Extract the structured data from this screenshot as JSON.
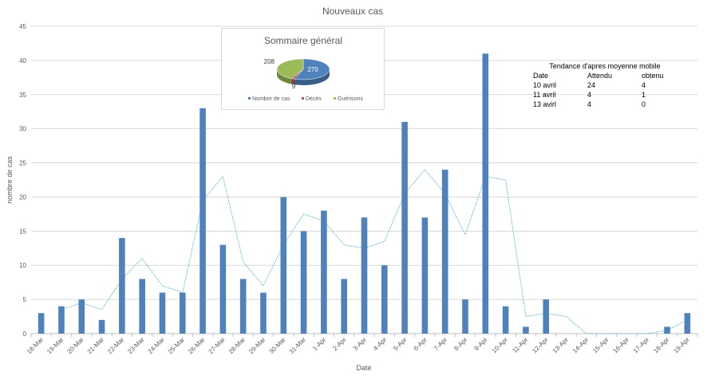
{
  "chart_data": {
    "type": "bar",
    "title": "Nouveaux cas",
    "xlabel": "Date",
    "ylabel": "nombre de cas",
    "ylim": [
      0,
      45
    ],
    "yticks": [
      0,
      5,
      10,
      15,
      20,
      25,
      30,
      35,
      40,
      45
    ],
    "grid": "horizontal",
    "categories": [
      "18-Mar",
      "19-Mar",
      "20-Mar",
      "21-Mar",
      "22-Mar",
      "23-Mar",
      "24-Mar",
      "25-Mar",
      "26-Mar",
      "27-Mar",
      "28-Mar",
      "29-Mar",
      "30-Mar",
      "31-Mar",
      "1-Apr",
      "2-Apr",
      "3-Apr",
      "4-Apr",
      "5-Apr",
      "6-Apr",
      "7-Apr",
      "8-Apr",
      "9-Apr",
      "10-Apr",
      "11-Apr",
      "12-Apr",
      "13-Apr",
      "14-Apr",
      "15-Apr",
      "16-Apr",
      "17-Apr",
      "18-Apr",
      "19-Apr"
    ],
    "series": [
      {
        "kind": "bar",
        "color": "#4f81bd",
        "values": [
          3,
          4,
          5,
          2,
          14,
          8,
          6,
          6,
          33,
          13,
          8,
          6,
          20,
          15,
          18,
          8,
          17,
          10,
          31,
          17,
          24,
          5,
          41,
          4,
          1,
          5,
          0,
          0,
          0,
          0,
          0,
          1,
          3
        ]
      },
      {
        "kind": "trendline-moving-average",
        "color": "#4bacc6",
        "values": [
          null,
          3.5,
          4.5,
          3.5,
          8,
          11,
          7,
          6,
          19.5,
          23,
          10.5,
          7,
          13,
          17.5,
          16.5,
          13,
          12.5,
          13.5,
          20.5,
          24,
          20.5,
          14.5,
          23,
          22.5,
          2.5,
          3,
          2.5,
          0,
          0,
          0,
          0,
          0.5,
          2
        ]
      }
    ]
  },
  "summary": {
    "title": "Sommaire général",
    "chart_data": {
      "type": "pie",
      "slices": [
        {
          "label": "Nombre de cas",
          "value": 270,
          "color": "#4f81bd"
        },
        {
          "label": "Décès",
          "value": 9,
          "color": "#c0504d"
        },
        {
          "label": "Guérisons",
          "value": 208,
          "color": "#9bbb59"
        }
      ],
      "legend": "bottom"
    }
  },
  "trend_table": {
    "title": "Tendance d'apres moyenne mobile",
    "headers": [
      "Date",
      "Attendu",
      "obtenu"
    ],
    "rows": [
      [
        "10 avril",
        "24",
        "4"
      ],
      [
        "11 avril",
        "4",
        "1"
      ],
      [
        "13 avirl",
        "4",
        "0"
      ]
    ]
  }
}
